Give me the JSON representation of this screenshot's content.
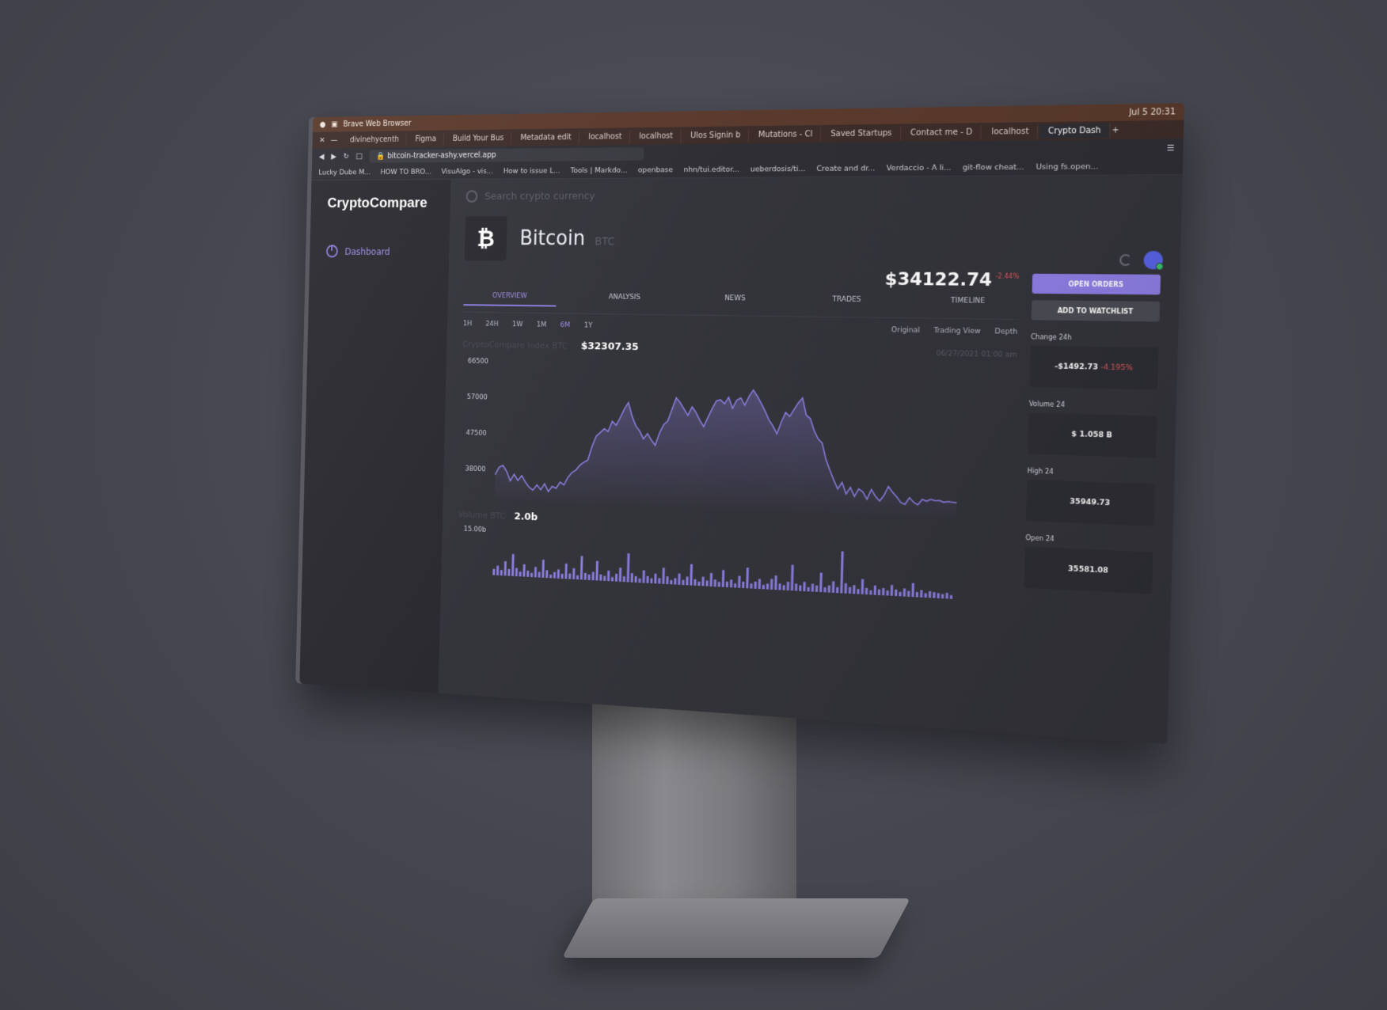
{
  "browser": {
    "window_title": "Brave Web Browser",
    "clock": "Jul 5  20:31",
    "tabs": [
      "divinehycenth",
      "Figma",
      "Build Your Bus",
      "Metadata edit",
      "localhost",
      "localhost",
      "Ulos Signin b",
      "Mutations - Cl",
      "Saved Startups",
      "Contact me - D",
      "localhost",
      "Crypto Dash"
    ],
    "url": "bitcoin-tracker-ashy.vercel.app",
    "bookmarks": [
      "Lucky Dube M...",
      "HOW TO BRO...",
      "VisuAlgo - vis...",
      "How to issue L...",
      "Tools | Markdo...",
      "openbase",
      "nhn/tui.editor...",
      "ueberdosis/ti...",
      "Create and dr...",
      "Verdaccio - A li...",
      "git-flow cheat...",
      "Using fs.open..."
    ]
  },
  "sidebar": {
    "logo": "CryptoCompare",
    "items": [
      {
        "label": "Dashboard"
      }
    ]
  },
  "search": {
    "placeholder": "Search crypto currency"
  },
  "coin": {
    "name": "Bitcoin",
    "symbol": "BTC",
    "price": "$34122.74",
    "change": "-2.44%"
  },
  "main_tabs": [
    "OVERVIEW",
    "ANALYSIS",
    "NEWS",
    "TRADES",
    "TIMELINE"
  ],
  "ranges": [
    "1H",
    "24H",
    "1W",
    "1M",
    "6M",
    "1Y"
  ],
  "active_range": "6M",
  "views": [
    "Original",
    "Trading View",
    "Depth"
  ],
  "price_info": {
    "label": "CryptoCompare Index BTC",
    "value": "$32307.35",
    "timestamp": "06/27/2021 01:00 am"
  },
  "volume_info": {
    "label": "Volume BTC",
    "value": "2.0b"
  },
  "actions": {
    "open_orders": "OPEN ORDERS",
    "add_watchlist": "ADD TO WATCHLIST"
  },
  "stats": {
    "change_label": "Change 24h",
    "change_value": "-$1492.73",
    "change_pct": "-4.195%",
    "volume_label": "Volume 24",
    "volume_value": "$ 1.058 B",
    "high_label": "High 24",
    "high_value": "35949.73",
    "open_label": "Open 24",
    "open_value": "35581.08"
  },
  "colors": {
    "accent": "#8f7fe6",
    "line": "#8c7ee0",
    "negative": "#e05a5a"
  },
  "chart_data": [
    {
      "type": "area",
      "yticks": [
        66500,
        57000,
        47500,
        38000
      ],
      "ylim": [
        30000,
        66500
      ],
      "values": [
        36500,
        38500,
        39000,
        37500,
        35000,
        36800,
        35200,
        36500,
        34800,
        33500,
        32800,
        34200,
        33000,
        34600,
        32600,
        34000,
        33500,
        35200,
        34500,
        36500,
        37800,
        38500,
        39800,
        40600,
        41200,
        44800,
        47500,
        48500,
        49500,
        48800,
        51500,
        50500,
        52500,
        54800,
        56500,
        53000,
        50500,
        49200,
        47200,
        48600,
        47000,
        45600,
        48800,
        51000,
        52000,
        55000,
        58000,
        56800,
        55200,
        53600,
        55800,
        54400,
        52400,
        50800,
        53200,
        55500,
        57500,
        57800,
        56800,
        58500,
        55700,
        57800,
        58400,
        56600,
        58800,
        60500,
        59000,
        57200,
        55200,
        53000,
        51500,
        49500,
        52500,
        55000,
        54000,
        55800,
        57500,
        58800,
        54500,
        53600,
        50600,
        48600,
        47500,
        43500,
        40800,
        38300,
        36100,
        37800,
        34900,
        36600,
        34400,
        36300,
        35600,
        33800,
        36300,
        34600,
        33500,
        34900,
        37200,
        35800,
        34700,
        33300,
        32900,
        34600,
        33500,
        32900,
        34300,
        33900,
        34400,
        34100,
        34200,
        33800,
        34000,
        33900,
        33800
      ]
    },
    {
      "type": "bar",
      "yticks": [
        "15.00b"
      ],
      "values": [
        0.9,
        1.4,
        0.8,
        2.1,
        1.0,
        3.2,
        1.2,
        0.7,
        1.8,
        0.9,
        0.6,
        1.5,
        0.8,
        2.6,
        1.1,
        0.5,
        0.9,
        1.3,
        0.7,
        2.2,
        0.8,
        1.6,
        0.6,
        3.4,
        1.0,
        0.8,
        1.2,
        2.8,
        0.9,
        0.7,
        1.5,
        0.6,
        1.1,
        2.0,
        0.8,
        4.1,
        1.3,
        0.9,
        0.6,
        1.8,
        1.0,
        0.7,
        1.4,
        0.8,
        2.3,
        1.1,
        0.6,
        0.9,
        1.6,
        0.7,
        1.2,
        3.0,
        0.9,
        0.6,
        1.3,
        0.8,
        1.9,
        1.0,
        0.7,
        2.4,
        0.8,
        1.1,
        0.6,
        1.7,
        0.9,
        2.9,
        0.7,
        1.0,
        1.4,
        0.6,
        0.8,
        1.5,
        2.0,
        0.9,
        0.7,
        1.2,
        3.6,
        1.0,
        0.8,
        1.3,
        0.6,
        1.1,
        0.9,
        2.7,
        0.7,
        1.0,
        1.6,
        0.8,
        5.8,
        1.4,
        0.9,
        1.2,
        0.7,
        2.1,
        0.9,
        0.6,
        1.3,
        0.8,
        1.0,
        0.7,
        1.5,
        0.9,
        0.6,
        1.1,
        0.8,
        1.9,
        0.7,
        1.0,
        0.6,
        0.9,
        0.8,
        0.7,
        0.6,
        0.8,
        0.5
      ]
    }
  ]
}
